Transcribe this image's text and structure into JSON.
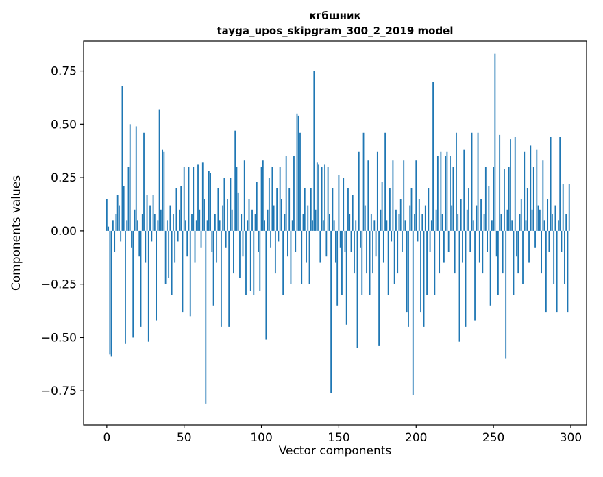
{
  "chart_data": {
    "type": "bar",
    "title_line1": "кгбшник",
    "title_line2": "tayga_upos_skipgram_300_2_2019 model",
    "title": "кгбшник\ntayga_upos_skipgram_300_2_2019 model",
    "xlabel": "Vector components",
    "ylabel": "Components values",
    "legend": null,
    "grid": false,
    "bar_color": "#1f77b4",
    "xlim": [
      -15,
      310.2
    ],
    "ylim": [
      -0.91,
      0.89
    ],
    "x_ticks": [
      0,
      50,
      100,
      150,
      200,
      250,
      300
    ],
    "x_tick_labels": [
      "0",
      "50",
      "100",
      "150",
      "200",
      "250",
      "300"
    ],
    "y_ticks": [
      -0.75,
      -0.5,
      -0.25,
      0,
      0.25,
      0.5,
      0.75
    ],
    "y_tick_labels": [
      "−0.75",
      "−0.50",
      "−0.25",
      "0.00",
      "0.25",
      "0.50",
      "0.75"
    ],
    "values": [
      0.15,
      0.02,
      -0.58,
      -0.59,
      0.05,
      -0.1,
      0.08,
      0.17,
      0.12,
      -0.05,
      0.68,
      0.21,
      -0.53,
      0.05,
      0.3,
      0.5,
      -0.08,
      -0.5,
      0.1,
      0.49,
      0.05,
      -0.12,
      -0.45,
      0.08,
      0.46,
      -0.15,
      0.17,
      -0.52,
      0.12,
      -0.05,
      0.17,
      0.08,
      -0.42,
      0.05,
      0.57,
      0.1,
      0.38,
      0.37,
      -0.25,
      0.05,
      -0.22,
      0.12,
      -0.3,
      0.08,
      -0.15,
      0.2,
      -0.05,
      0.1,
      0.21,
      -0.38,
      0.3,
      0.05,
      -0.12,
      0.3,
      -0.4,
      0.08,
      0.3,
      -0.15,
      0.05,
      0.31,
      0.1,
      -0.08,
      0.32,
      0.15,
      -0.81,
      0.05,
      0.28,
      0.27,
      -0.1,
      -0.35,
      0.08,
      -0.15,
      0.2,
      0.05,
      -0.45,
      0.12,
      0.25,
      -0.08,
      0.15,
      -0.45,
      0.25,
      0.1,
      -0.2,
      0.47,
      0.3,
      0.18,
      -0.22,
      0.08,
      -0.12,
      0.33,
      -0.3,
      0.05,
      0.15,
      -0.28,
      0.1,
      -0.3,
      0.08,
      0.23,
      -0.1,
      -0.28,
      0.3,
      0.33,
      0.05,
      -0.51,
      0.1,
      0.25,
      -0.08,
      0.3,
      0.12,
      -0.2,
      0.2,
      -0.05,
      0.3,
      0.15,
      -0.3,
      0.08,
      0.35,
      -0.12,
      0.2,
      -0.25,
      0.05,
      0.35,
      -0.1,
      0.55,
      0.54,
      0.46,
      -0.25,
      0.08,
      0.2,
      -0.15,
      0.12,
      -0.25,
      0.2,
      0.05,
      0.75,
      0.1,
      0.32,
      0.31,
      -0.15,
      0.3,
      0.05,
      0.31,
      -0.12,
      0.3,
      0.08,
      -0.76,
      0.2,
      0.05,
      -0.15,
      -0.35,
      0.26,
      -0.08,
      -0.3,
      0.25,
      -0.1,
      -0.44,
      0.2,
      0.08,
      -0.1,
      0.17,
      -0.2,
      0.05,
      -0.55,
      0.37,
      -0.08,
      -0.3,
      0.46,
      0.12,
      -0.2,
      0.33,
      -0.3,
      0.08,
      -0.2,
      0.05,
      -0.12,
      0.37,
      -0.54,
      0.1,
      0.23,
      -0.15,
      0.46,
      0.05,
      -0.3,
      0.2,
      -0.05,
      0.33,
      -0.25,
      0.1,
      -0.2,
      0.08,
      0.15,
      -0.1,
      0.33,
      0.05,
      -0.38,
      -0.45,
      0.12,
      0.2,
      -0.77,
      0.08,
      0.33,
      -0.05,
      0.15,
      -0.38,
      0.08,
      -0.45,
      0.12,
      -0.3,
      0.2,
      -0.1,
      0.05,
      0.7,
      -0.3,
      0.1,
      0.35,
      -0.2,
      0.37,
      0.08,
      -0.15,
      0.35,
      0.37,
      -0.1,
      0.35,
      0.12,
      0.3,
      -0.2,
      0.46,
      0.08,
      -0.52,
      0.15,
      -0.15,
      0.38,
      -0.45,
      0.1,
      0.2,
      -0.1,
      0.46,
      0.05,
      -0.42,
      0.12,
      0.46,
      -0.15,
      0.15,
      -0.2,
      0.08,
      0.3,
      -0.1,
      0.21,
      -0.35,
      0.05,
      0.3,
      0.83,
      -0.12,
      -0.3,
      0.45,
      0.08,
      -0.2,
      0.29,
      -0.6,
      0.1,
      0.3,
      0.43,
      0.05,
      -0.3,
      0.44,
      -0.12,
      -0.2,
      0.08,
      0.15,
      -0.25,
      0.37,
      0.05,
      0.2,
      -0.15,
      0.4,
      0.1,
      0.3,
      -0.08,
      0.38,
      0.12,
      0.1,
      -0.2,
      0.33,
      0.05,
      -0.38,
      0.15,
      -0.1,
      0.44,
      0.08,
      -0.25,
      0.12,
      -0.38,
      0.05,
      0.44,
      -0.1,
      0.22,
      -0.25,
      0.08,
      -0.38,
      0.22
    ]
  }
}
